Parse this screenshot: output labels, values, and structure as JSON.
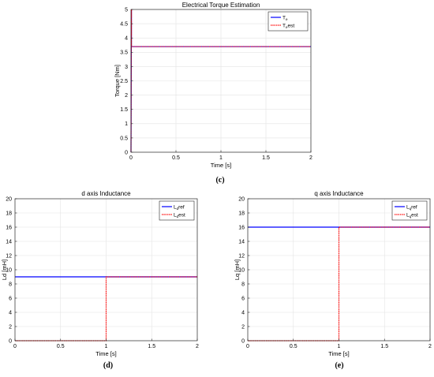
{
  "chart_data": [
    {
      "type": "line",
      "title": "Electrical Torque Estimation",
      "xlabel": "Time [s]",
      "ylabel": "Torque [Nm]",
      "xlim": [
        0,
        2
      ],
      "ylim": [
        0,
        5
      ],
      "xticks": [
        "0",
        "0.5",
        "1",
        "1.5",
        "2"
      ],
      "yticks": [
        "0",
        "0.5",
        "1",
        "1.5",
        "2",
        "2.5",
        "3",
        "3.5",
        "4",
        "4.5",
        "5"
      ],
      "grid": true,
      "legend_position": "top-right",
      "caption": "(c)",
      "series": [
        {
          "legend_main": "T",
          "legend_sub": "e",
          "legend_suffix": "",
          "color": "#0000ff",
          "dash": false,
          "x": [
            0,
            0.005,
            0.005,
            2
          ],
          "y": [
            0,
            5,
            3.7,
            3.7
          ]
        },
        {
          "legend_main": "T",
          "legend_sub": "e",
          "legend_suffix": "est",
          "color": "#ff0000",
          "dash": true,
          "x": [
            0,
            0.005,
            0.005,
            2
          ],
          "y": [
            0,
            5,
            3.7,
            3.7
          ]
        }
      ]
    },
    {
      "type": "line",
      "title": "d axis Inductance",
      "xlabel": "Time [s]",
      "ylabel": "Ld [mH]",
      "xlim": [
        0,
        2
      ],
      "ylim": [
        0,
        20
      ],
      "xticks": [
        "0",
        "0.5",
        "1",
        "1.5",
        "2"
      ],
      "yticks": [
        "0",
        "2",
        "4",
        "6",
        "8",
        "10",
        "12",
        "14",
        "16",
        "18",
        "20"
      ],
      "grid": true,
      "legend_position": "top-right",
      "caption": "(d)",
      "series": [
        {
          "legend_main": "L",
          "legend_sub": "d",
          "legend_suffix": "ref",
          "color": "#0000ff",
          "dash": false,
          "x": [
            0,
            2
          ],
          "y": [
            9,
            9
          ]
        },
        {
          "legend_main": "L",
          "legend_sub": "d",
          "legend_suffix": "est",
          "color": "#ff0000",
          "dash": true,
          "x": [
            0,
            1,
            1,
            2
          ],
          "y": [
            0,
            0,
            9,
            9
          ]
        }
      ]
    },
    {
      "type": "line",
      "title": "q axis Inductance",
      "xlabel": "Time [s]",
      "ylabel": "Lq [mH]",
      "xlim": [
        0,
        2
      ],
      "ylim": [
        0,
        20
      ],
      "xticks": [
        "0",
        "0.5",
        "1",
        "1.5",
        "2"
      ],
      "yticks": [
        "0",
        "2",
        "4",
        "6",
        "8",
        "10",
        "12",
        "14",
        "16",
        "18",
        "20"
      ],
      "grid": true,
      "legend_position": "top-right",
      "caption": "(e)",
      "series": [
        {
          "legend_main": "L",
          "legend_sub": "q",
          "legend_suffix": "ref",
          "color": "#0000ff",
          "dash": false,
          "x": [
            0,
            2
          ],
          "y": [
            16,
            16
          ]
        },
        {
          "legend_main": "L",
          "legend_sub": "q",
          "legend_suffix": "est",
          "color": "#ff0000",
          "dash": true,
          "x": [
            0,
            1,
            1,
            2
          ],
          "y": [
            0,
            0,
            16,
            16
          ]
        }
      ]
    }
  ]
}
